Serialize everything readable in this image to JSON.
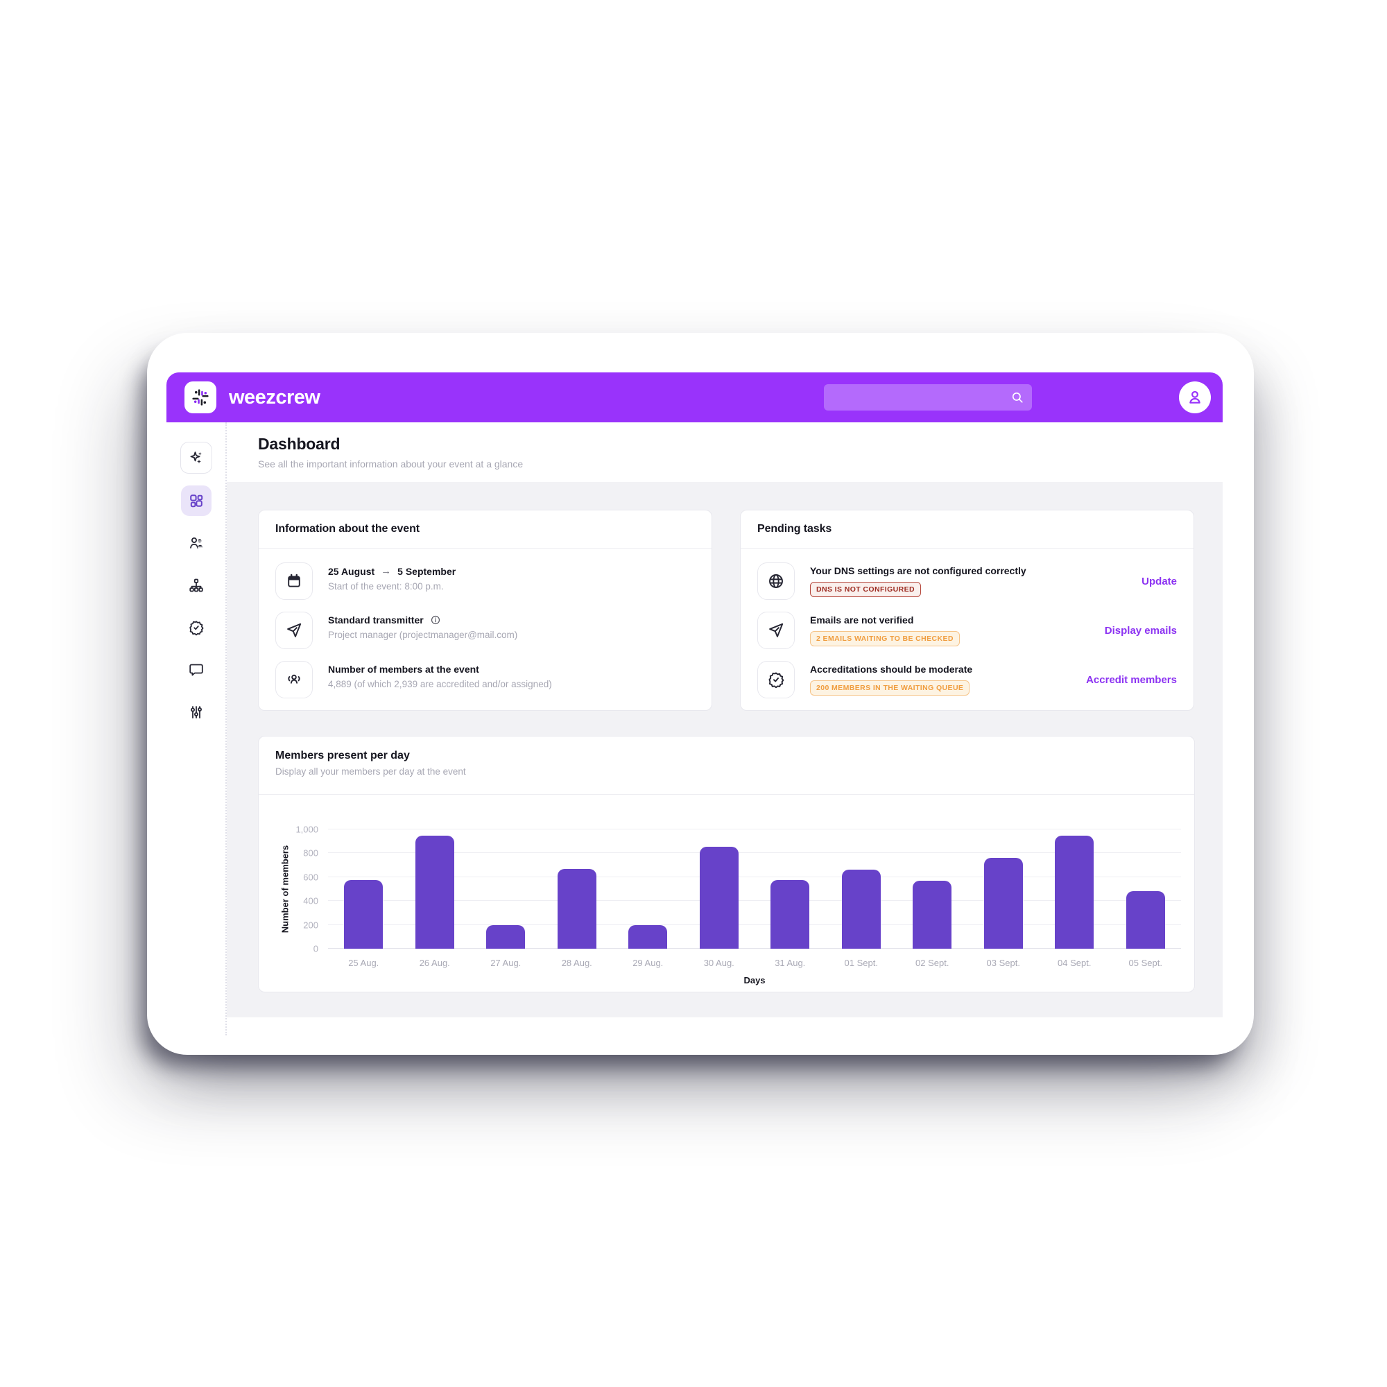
{
  "header": {
    "brand": "weezcrew",
    "search": {
      "value": "",
      "placeholder": ""
    }
  },
  "sidebar": {
    "items": [
      {
        "id": "assistant",
        "icon": "sparkles-icon"
      },
      {
        "id": "dashboard",
        "icon": "dashboard-grid-icon",
        "active": true
      },
      {
        "id": "members",
        "icon": "members-icon"
      },
      {
        "id": "structure",
        "icon": "hierarchy-icon"
      },
      {
        "id": "accreditations",
        "icon": "seal-check-icon"
      },
      {
        "id": "messages",
        "icon": "chat-bubble-icon"
      },
      {
        "id": "settings",
        "icon": "sliders-icon"
      }
    ]
  },
  "page": {
    "title": "Dashboard",
    "subtitle": "See all the important information about your event at a glance"
  },
  "info_card": {
    "title": "Information about the event",
    "rows": [
      {
        "icon": "calendar-icon",
        "date_start": "25 August",
        "arrow": "→",
        "date_end": "5 September",
        "subtitle": "Start of the event: 8:00 p.m."
      },
      {
        "icon": "send-icon",
        "title": "Standard transmitter",
        "subtitle": "Project manager (projectmanager@mail.com)"
      },
      {
        "icon": "crowd-icon",
        "title": "Number of members at the event",
        "subtitle": "4,889 (of which 2,939 are accredited and/or assigned)"
      }
    ]
  },
  "pending_card": {
    "title": "Pending tasks",
    "rows": [
      {
        "icon": "globe-icon",
        "title": "Your DNS settings are not configured correctly",
        "badge": "DNS IS NOT CONFIGURED",
        "badge_type": "error",
        "action": "Update"
      },
      {
        "icon": "send-icon",
        "title": "Emails are not verified",
        "badge": "2 EMAILS WAITING TO BE CHECKED",
        "badge_type": "warning",
        "action": "Display emails"
      },
      {
        "icon": "seal-check-icon",
        "title": "Accreditations should be moderate",
        "badge": "200 MEMBERS IN THE WAITING QUEUE",
        "badge_type": "warning",
        "action": "Accredit members"
      }
    ]
  },
  "chart_card": {
    "title": "Members present per day",
    "subtitle": "Display all your members per day at the event"
  },
  "chart_data": {
    "type": "bar",
    "categories": [
      "25 Aug.",
      "26 Aug.",
      "27 Aug.",
      "28 Aug.",
      "29 Aug.",
      "30 Aug.",
      "31 Aug.",
      "01 Sept.",
      "02 Sept.",
      "03 Sept.",
      "04 Sept.",
      "05 Sept."
    ],
    "values": [
      575,
      950,
      200,
      670,
      200,
      855,
      575,
      665,
      570,
      760,
      945,
      480
    ],
    "title": "Members present per day",
    "xlabel": "Days",
    "ylabel": "Number of members",
    "ylim": [
      0,
      1000
    ],
    "yticks": [
      0,
      200,
      400,
      600,
      800,
      1000
    ],
    "grid": true,
    "legend_position": "none",
    "bar_color": "#6742c9"
  },
  "colors": {
    "topbar": "#9933fb",
    "bar": "#6742c9",
    "link": "#8c33f2",
    "sidebar_active": "#6742c9",
    "error_text": "#9c2b21",
    "warning_text": "#f09d3f",
    "content_bg": "#f2f2f5"
  }
}
